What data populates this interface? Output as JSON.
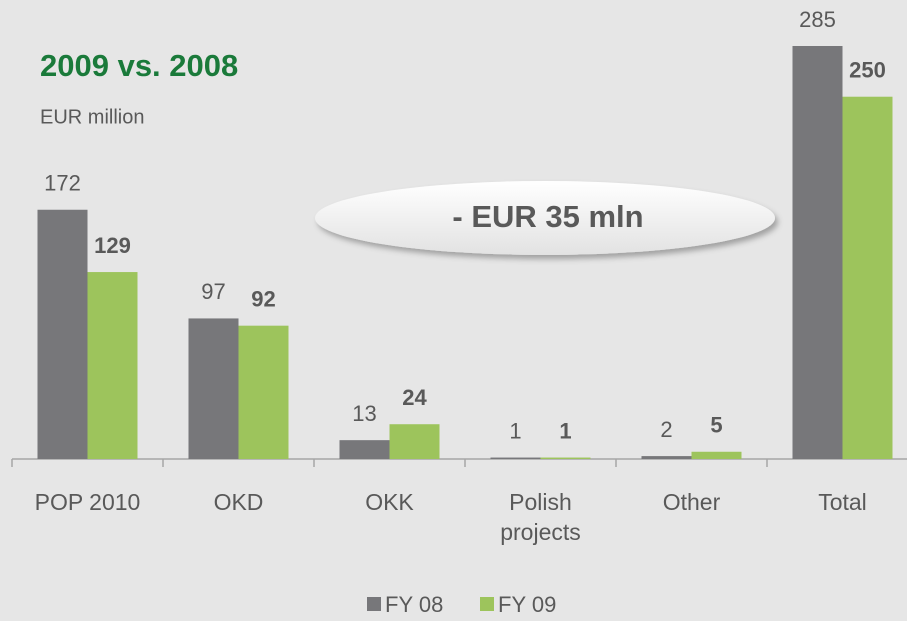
{
  "chart_data": {
    "type": "bar",
    "title": "2009 vs. 2008",
    "subtitle": "EUR million",
    "annotation": "- EUR 35 mln",
    "categories": [
      "POP 2010",
      "OKD",
      "OKK",
      "Polish projects",
      "Other",
      "Total"
    ],
    "series": [
      {
        "name": "FY 08",
        "color": "#77777a",
        "values": [
          172,
          97,
          13,
          1,
          2,
          285
        ]
      },
      {
        "name": "FY 09",
        "color": "#9dc45c",
        "values": [
          129,
          92,
          24,
          1,
          5,
          250
        ]
      }
    ],
    "legend": "bottom"
  }
}
